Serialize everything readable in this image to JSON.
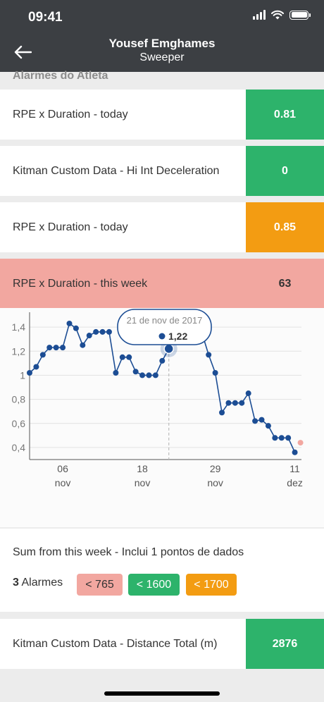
{
  "status_bar": {
    "time": "09:41"
  },
  "header": {
    "name": "Yousef Emghames",
    "role": "Sweeper"
  },
  "section_label": "Alarmes do Atleta",
  "alarms": [
    {
      "label": "RPE x Duration - today",
      "value": "0.81",
      "color": "#2db36b"
    },
    {
      "label": "Kitman Custom Data - Hi Int Deceleration",
      "value": "0",
      "color": "#2db36b"
    },
    {
      "label": "RPE x Duration - today",
      "value": "0.85",
      "color": "#f39c12"
    },
    {
      "label": "RPE x Duration - this week",
      "value": "63",
      "color": "#f2a7a0",
      "highlighted": true
    }
  ],
  "tooltip": {
    "date": "21 de nov de 2017",
    "value": "1,22"
  },
  "chart_data": {
    "type": "line",
    "ylim": [
      0.3,
      1.5
    ],
    "yticks": [
      "0,4",
      "0,6",
      "0,8",
      "1",
      "1,2",
      "1,4"
    ],
    "xticks": [
      {
        "day": "06",
        "month": "nov",
        "index": 6
      },
      {
        "day": "18",
        "month": "nov",
        "index": 18
      },
      {
        "day": "29",
        "month": "nov",
        "index": 29
      },
      {
        "day": "11",
        "month": "dez",
        "index": 41
      }
    ],
    "series": [
      {
        "values": [
          1.02,
          1.07,
          1.17,
          1.23,
          1.23,
          1.23,
          1.43,
          1.39,
          1.25,
          1.33,
          1.36,
          1.36,
          1.36,
          1.02,
          1.15,
          1.15,
          1.03,
          1.0,
          1.0,
          1.0,
          1.12,
          1.22,
          1.32,
          1.42,
          1.52,
          1.47,
          1.35,
          1.17,
          1.02,
          0.69,
          0.77,
          0.77,
          0.77,
          0.85,
          0.62,
          0.63,
          0.58,
          0.48,
          0.48,
          0.48,
          0.36
        ],
        "color": "#1c4d94"
      }
    ],
    "pending_point": {
      "index": 41,
      "value": 0.44,
      "color": "#f2a7a0"
    },
    "selected_index": 21
  },
  "summary": {
    "text": "Sum from this week - Inclui 1 pontos de dados",
    "alarms_count": "3",
    "alarms_word": "Alarmes",
    "thresholds": [
      {
        "label": "< 765",
        "color": "#f2a7a0",
        "text_color": "#333333"
      },
      {
        "label": "< 1600",
        "color": "#2db36b",
        "text_color": "#ffffff"
      },
      {
        "label": "< 1700",
        "color": "#f39c12",
        "text_color": "#ffffff"
      }
    ]
  },
  "bottom_alarm": {
    "label": "Kitman Custom Data - Distance Total (m)",
    "value": "2876",
    "color": "#2db36b"
  }
}
